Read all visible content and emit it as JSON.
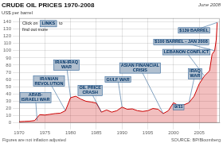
{
  "chart_data": {
    "type": "line",
    "title": "CRUDE OIL PRICES 1970-2008",
    "subtitle": "US$ per barrel",
    "date_label": "June 2008",
    "footnote": "Figures are not inflation adjusted",
    "source": "SOURCE: BP/Bloomberg",
    "color": "#cc0000",
    "grid": true,
    "xlim": [
      1970,
      2009
    ],
    "ylim": [
      0,
      145
    ],
    "xticks": [
      1970,
      1975,
      1980,
      1985,
      1990,
      1995,
      2000,
      2005
    ],
    "yticks": [
      0,
      10,
      20,
      30,
      40,
      50,
      60,
      70,
      80,
      90,
      100,
      110,
      120,
      130,
      140
    ],
    "x": [
      1970,
      1971,
      1972,
      1973,
      1974,
      1975,
      1976,
      1977,
      1978,
      1979,
      1980,
      1981,
      1982,
      1983,
      1984,
      1985,
      1986,
      1987,
      1988,
      1989,
      1990,
      1991,
      1992,
      1993,
      1994,
      1995,
      1996,
      1997,
      1998,
      1999,
      2000,
      2001,
      2002,
      2003,
      2004,
      2005,
      2006,
      2007,
      2007.5,
      2008.0,
      2008.3,
      2008.5
    ],
    "values": [
      1.8,
      2.2,
      2.5,
      3.3,
      11.5,
      11.0,
      12.0,
      13.0,
      13.5,
      17.0,
      35.0,
      37.0,
      33.0,
      30.0,
      29.0,
      27.5,
      15.0,
      18.0,
      15.0,
      17.0,
      22.0,
      19.0,
      19.5,
      17.0,
      16.0,
      17.0,
      20.0,
      19.0,
      13.0,
      17.0,
      28.0,
      24.0,
      25.0,
      28.0,
      37.0,
      54.0,
      65.0,
      72.0,
      95.0,
      100.0,
      115.0,
      139.0
    ],
    "annotations": [
      {
        "label": "ARAB-\nISRAELI WAR",
        "x": 1973.5,
        "y": 3.3
      },
      {
        "label": "IRANIAN\nREVOLUTION",
        "x": 1979,
        "y": 17.0
      },
      {
        "label": "IRAN-IRAQ\nWAR",
        "x": 1980,
        "y": 35.0
      },
      {
        "label": "OIL PRICE\nCRASH",
        "x": 1986,
        "y": 15.0
      },
      {
        "label": "GULF WAR",
        "x": 1990,
        "y": 22.0
      },
      {
        "label": "ASIAN FINANCIAL\nCRISIS",
        "x": 1998,
        "y": 13.0
      },
      {
        "label": "9/11",
        "x": 2001,
        "y": 24.0
      },
      {
        "label": "LEBANON CONFLICT",
        "x": 2006,
        "y": 65.0
      },
      {
        "label": "$100 BARREL - JAN 2008",
        "x": 2008.0,
        "y": 100.0
      },
      {
        "label": "$139 BARREL",
        "x": 2008.5,
        "y": 139.0
      },
      {
        "label": "IRAQ\nWAR",
        "x": 2003,
        "y": 28.0
      }
    ],
    "links_note": {
      "before": "Click on",
      "link": "LINKS",
      "after": "to",
      "next_line": "find out more"
    }
  }
}
